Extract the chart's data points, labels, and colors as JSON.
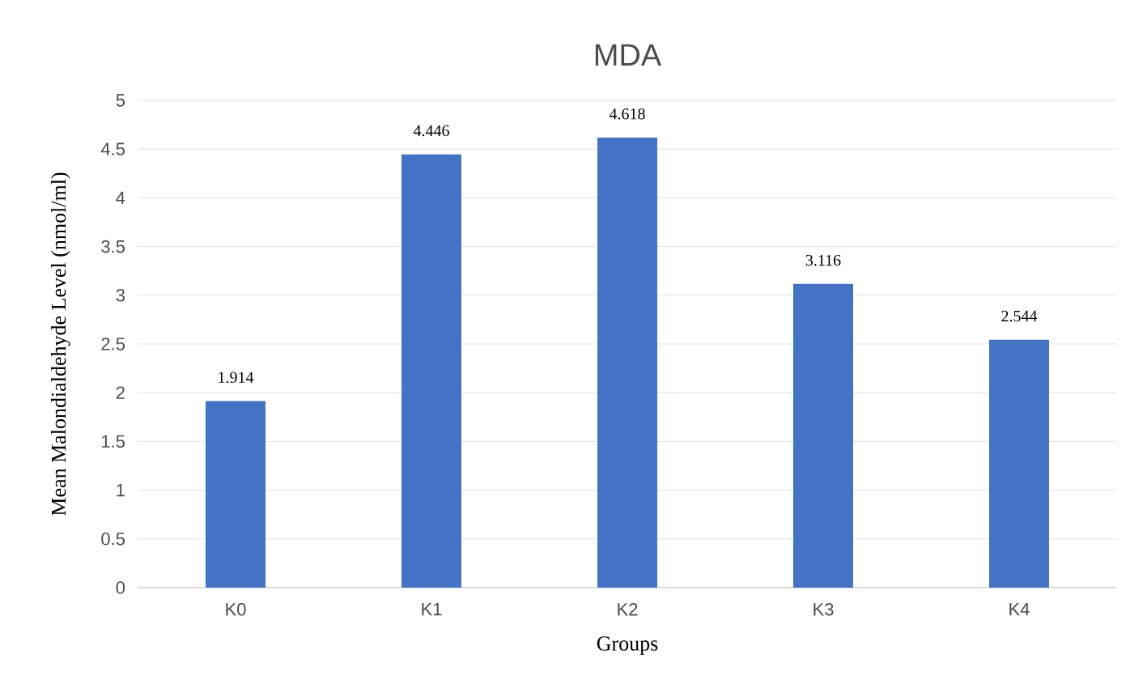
{
  "chart_data": {
    "type": "bar",
    "title": "MDA",
    "xlabel": "Groups",
    "ylabel": "Mean Malondialdehyde Level (nmol/ml)",
    "categories": [
      "K0",
      "K1",
      "K2",
      "K3",
      "K4"
    ],
    "values": [
      1.914,
      4.446,
      4.618,
      3.116,
      2.544
    ],
    "color": "#4472c4",
    "ylim": [
      0,
      5
    ],
    "yticks": [
      0,
      0.5,
      1,
      1.5,
      2,
      2.5,
      3,
      3.5,
      4,
      4.5,
      5
    ],
    "grid": "y",
    "data_labels": true
  }
}
